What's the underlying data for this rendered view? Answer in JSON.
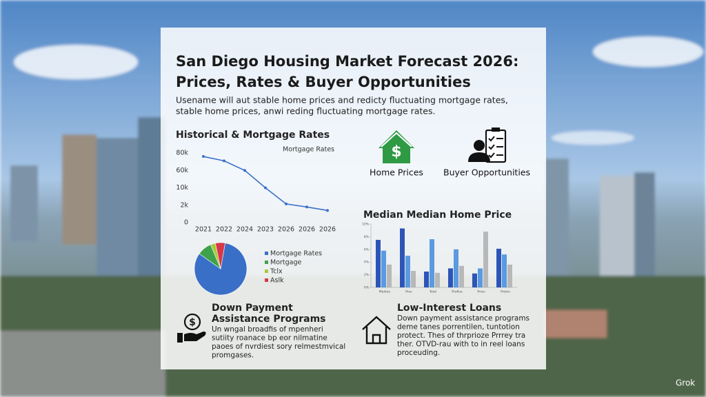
{
  "header": {
    "title": [
      "San Diego Housing Market Forecast 2026:",
      "Prices, Rates & Buyer Opportunities"
    ],
    "subtitle": [
      "Usename will aut stable home prices and redicty fluctuating mortgage rates,",
      "stable home prices, anwi reding fluctuating mortgage rates."
    ]
  },
  "chart_data": [
    {
      "type": "line",
      "title": "Historical & Mortgage Rates",
      "series_label": "Mortgage Rates",
      "color": "#3a6fc8",
      "categories": [
        "2021",
        "2022",
        "2024",
        "2023",
        "2026",
        "2026",
        "2026"
      ],
      "values": [
        76000,
        71000,
        60000,
        10000,
        2600,
        1800,
        1400
      ],
      "ylim": [
        0,
        80000
      ],
      "yticks": [
        0,
        {
          "value": 2000,
          "label": "2k"
        },
        {
          "value": 10000,
          "label": "10k"
        },
        {
          "value": 60000,
          "label": "60k"
        },
        {
          "value": 80000,
          "label": "80k"
        }
      ]
    },
    {
      "type": "pie",
      "categories": [
        "Mortgage Rates",
        "Mortgage",
        "Tclx",
        "Aslk"
      ],
      "values": [
        82,
        9,
        3,
        6
      ],
      "colors": [
        "#3a6fc8",
        "#3fa24a",
        "#a8c83c",
        "#d6384a"
      ]
    },
    {
      "type": "bar",
      "title": "Median Median Home Price",
      "categories": [
        "Median",
        "Proc",
        "Tolal",
        "Proflue",
        "Prion",
        "Prelon"
      ],
      "series": [
        {
          "color": "#2d55b8",
          "values": [
            7.5,
            9.3,
            2.5,
            3.0,
            2.2,
            6.1
          ]
        },
        {
          "color": "#5a9ae0",
          "values": [
            5.8,
            5.0,
            7.6,
            6.0,
            3.0,
            5.2
          ]
        },
        {
          "color": "#b8b8b8",
          "values": [
            3.6,
            2.6,
            2.3,
            3.4,
            8.8,
            3.6
          ]
        }
      ],
      "ylim": [
        0,
        10
      ],
      "yticks": [
        {
          "value": 0,
          "label": "0%"
        },
        {
          "value": 2,
          "label": "2%"
        },
        {
          "value": 4,
          "label": "4%"
        },
        {
          "value": 6,
          "label": "6%"
        },
        {
          "value": 8,
          "label": "8%"
        },
        {
          "value": 10,
          "label": "10%"
        }
      ]
    }
  ],
  "icons": [
    "Home Prices",
    "Buyer Opportunities"
  ],
  "sections": [
    {
      "title": [
        "Down Payment",
        "Assistance Programs"
      ],
      "body": [
        "Un wngal broadfis of mpenheri",
        "sutiity roanace bp eor nilmatine",
        "paoes of nvrdiest sory relmestmvical",
        "promgases."
      ]
    },
    {
      "title": [
        "Low-Interest Loans"
      ],
      "body": [
        "Down payment assistance programs",
        "deme tanes porrentilen, tuntotion",
        "protect. Thes of thrprioze Prrrey tra",
        "ther. OTVD-rau with to in reel loans",
        "proceuding."
      ]
    }
  ],
  "watermark": "Grok"
}
